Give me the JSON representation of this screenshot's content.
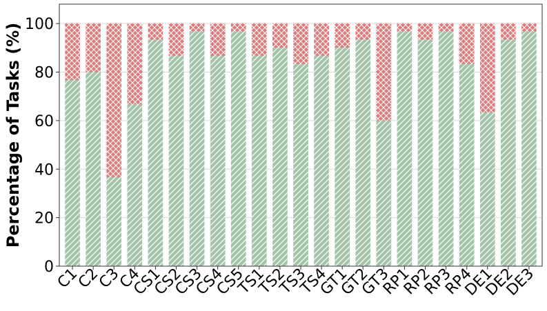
{
  "chart_data": {
    "type": "bar",
    "stacked": true,
    "title": "",
    "xlabel": "",
    "ylabel": "Percentage of Tasks (%)",
    "ylim": [
      0,
      108
    ],
    "yticks": [
      0,
      20,
      40,
      60,
      80,
      100
    ],
    "grid": "y-major",
    "categories": [
      "C1",
      "C2",
      "C3",
      "C4",
      "CS1",
      "CS2",
      "CS3",
      "CS4",
      "CS5",
      "TS1",
      "TS2",
      "TS3",
      "TS4",
      "GT1",
      "GT2",
      "GT3",
      "RP1",
      "RP2",
      "RP3",
      "RP4",
      "DE1",
      "DE2",
      "DE3"
    ],
    "series": [
      {
        "values": [
          76.7,
          80.0,
          36.7,
          66.7,
          93.3,
          86.7,
          96.7,
          86.7,
          96.7,
          86.7,
          90.0,
          83.3,
          86.7,
          90.0,
          93.3,
          60.0,
          96.7,
          93.3,
          96.7,
          83.3,
          63.3,
          93.3,
          96.7
        ],
        "color": "#a3c4a8",
        "pattern": "diagonal-lines"
      },
      {
        "values": [
          23.3,
          20.0,
          63.3,
          33.3,
          6.7,
          13.3,
          3.3,
          13.3,
          3.3,
          13.3,
          10.0,
          16.7,
          13.3,
          10.0,
          6.7,
          40.0,
          3.3,
          6.7,
          3.3,
          16.7,
          36.7,
          6.7,
          3.3
        ],
        "color": "#e07a7a",
        "pattern": "crosshatch"
      }
    ]
  }
}
